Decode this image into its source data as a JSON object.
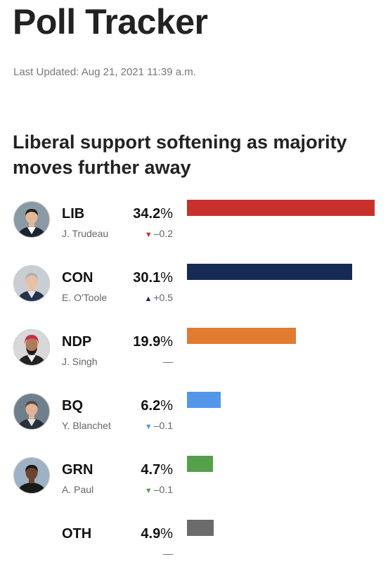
{
  "header": {
    "title": "Poll Tracker",
    "updated": "Last Updated: Aug 21, 2021 11:39 a.m."
  },
  "headline": "Liberal support softening as majority moves further away",
  "chart_data": {
    "type": "bar",
    "orientation": "horizontal",
    "title": "Liberal support softening as majority moves further away",
    "categories": [
      "LIB",
      "CON",
      "NDP",
      "BQ",
      "GRN",
      "OTH"
    ],
    "values": [
      34.2,
      30.1,
      19.9,
      6.2,
      4.7,
      4.9
    ],
    "value_suffix": "%",
    "xlim": [
      0,
      34.2
    ],
    "grid": false,
    "rows": [
      {
        "party": "LIB",
        "leader": "J. Trudeau",
        "value": 34.2,
        "pct_text": "34.2",
        "change_dir": "down",
        "change": "–0.2",
        "color": "#c8302c",
        "avatar": "trudeau"
      },
      {
        "party": "CON",
        "leader": "E. O'Toole",
        "value": 30.1,
        "pct_text": "30.1",
        "change_dir": "up",
        "change": "+0.5",
        "color": "#172a53",
        "avatar": "otoole"
      },
      {
        "party": "NDP",
        "leader": "J. Singh",
        "value": 19.9,
        "pct_text": "19.9",
        "change_dir": "none",
        "change": "—",
        "color": "#e07b30",
        "avatar": "singh"
      },
      {
        "party": "BQ",
        "leader": "Y. Blanchet",
        "value": 6.2,
        "pct_text": "6.2",
        "change_dir": "down",
        "change": "–0.1",
        "color": "#5496e8",
        "avatar": "blanchet"
      },
      {
        "party": "GRN",
        "leader": "A. Paul",
        "value": 4.7,
        "pct_text": "4.7",
        "change_dir": "down",
        "change": "–0.1",
        "color": "#55a04a",
        "avatar": "paul"
      },
      {
        "party": "OTH",
        "leader": "",
        "value": 4.9,
        "pct_text": "4.9",
        "change_dir": "none",
        "change": "—",
        "color": "#6b6b6b",
        "avatar": ""
      }
    ]
  }
}
